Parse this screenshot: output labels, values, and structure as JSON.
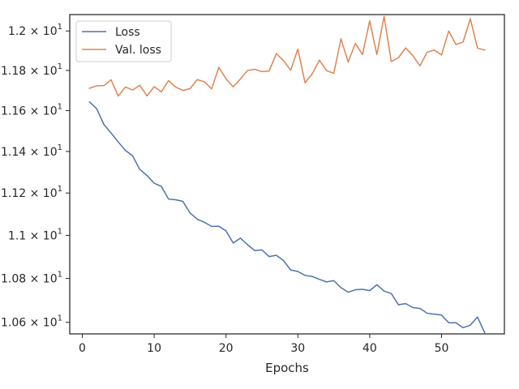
{
  "chart_data": {
    "type": "line",
    "title": "",
    "xlabel": "Epochs",
    "ylabel": "",
    "xlim": [
      -1.75,
      58.75
    ],
    "ylim": [
      10.548,
      12.084
    ],
    "log_y": true,
    "grid": false,
    "legend_position": "top-left",
    "x_ticks": [
      0,
      10,
      20,
      30,
      40,
      50
    ],
    "x_tick_labels": [
      "0",
      "10",
      "20",
      "30",
      "40",
      "50"
    ],
    "y_ticks": [
      10.6,
      10.8,
      11.0,
      11.2,
      11.4,
      11.6,
      11.8,
      12.0
    ],
    "y_tick_labels": [
      {
        "mantissa": "1.06",
        "exponent": "1"
      },
      {
        "mantissa": "1.08",
        "exponent": "1"
      },
      {
        "mantissa": "1.1",
        "exponent": "1"
      },
      {
        "mantissa": "1.12",
        "exponent": "1"
      },
      {
        "mantissa": "1.14",
        "exponent": "1"
      },
      {
        "mantissa": "1.16",
        "exponent": "1"
      },
      {
        "mantissa": "1.18",
        "exponent": "1"
      },
      {
        "mantissa": "1.2",
        "exponent": "1"
      }
    ],
    "x": [
      1,
      2,
      3,
      4,
      5,
      6,
      7,
      8,
      9,
      10,
      11,
      12,
      13,
      14,
      15,
      16,
      17,
      18,
      19,
      20,
      21,
      22,
      23,
      24,
      25,
      26,
      27,
      28,
      29,
      30,
      31,
      32,
      33,
      34,
      35,
      36,
      37,
      38,
      39,
      40,
      41,
      42,
      43,
      44,
      45,
      46,
      47,
      48,
      49,
      50,
      51,
      52,
      53,
      54,
      55,
      56
    ],
    "series": [
      {
        "name": "Loss",
        "color": "#4c72b0",
        "values": [
          11.643,
          11.609,
          11.532,
          11.49,
          11.446,
          11.405,
          11.379,
          11.313,
          11.284,
          11.247,
          11.232,
          11.171,
          11.168,
          11.16,
          11.105,
          11.076,
          11.061,
          11.042,
          11.043,
          11.021,
          10.964,
          10.987,
          10.956,
          10.929,
          10.932,
          10.901,
          10.907,
          10.883,
          10.839,
          10.832,
          10.814,
          10.809,
          10.796,
          10.784,
          10.79,
          10.758,
          10.737,
          10.748,
          10.75,
          10.744,
          10.771,
          10.742,
          10.731,
          10.68,
          10.685,
          10.667,
          10.663,
          10.641,
          10.637,
          10.633,
          10.598,
          10.598,
          10.576,
          10.587,
          10.624,
          10.554
        ]
      },
      {
        "name": "Val. loss",
        "color": "#dd8452",
        "values": [
          11.711,
          11.723,
          11.724,
          11.753,
          11.672,
          11.717,
          11.702,
          11.726,
          11.673,
          11.719,
          11.693,
          11.749,
          11.717,
          11.7,
          11.709,
          11.754,
          11.743,
          11.708,
          11.816,
          11.758,
          11.718,
          11.757,
          11.8,
          11.806,
          11.794,
          11.797,
          11.885,
          11.85,
          11.801,
          11.908,
          11.738,
          11.783,
          11.852,
          11.799,
          11.785,
          11.96,
          11.842,
          11.937,
          11.88,
          12.052,
          11.88,
          12.075,
          11.845,
          11.864,
          11.914,
          11.875,
          11.823,
          11.892,
          11.903,
          11.878,
          12.0,
          11.931,
          11.944,
          12.063,
          11.913,
          11.903
        ]
      }
    ]
  }
}
